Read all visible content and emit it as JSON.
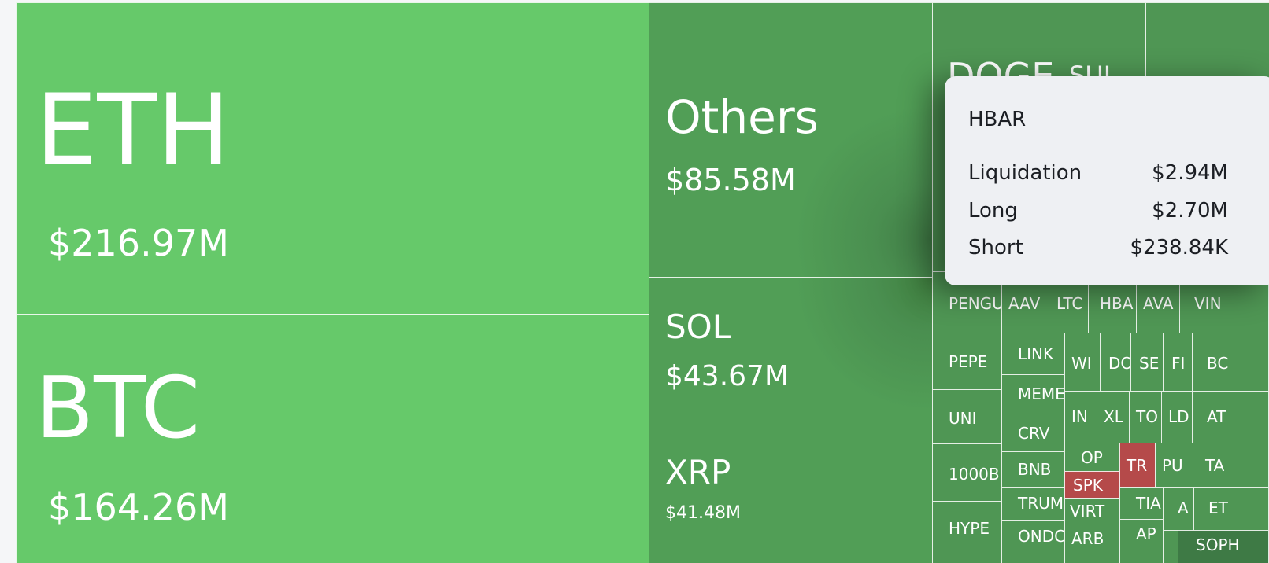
{
  "treemap": {
    "main_tiles": [
      {
        "symbol": "ETH",
        "value": "$216.97M"
      },
      {
        "symbol": "BTC",
        "value": "$164.26M"
      },
      {
        "symbol": "Others",
        "value": "$85.58M"
      },
      {
        "symbol": "SOL",
        "value": "$43.67M"
      },
      {
        "symbol": "XRP",
        "value": "$41.48M"
      }
    ],
    "small_tiles": [
      "DOGE",
      "SUI",
      "PENGU",
      "AAV",
      "LTC",
      "HBA",
      "AVA",
      "VIN",
      "PEPE",
      "LINK",
      "MEME",
      "CRV",
      "UNI",
      "1000B",
      "BNB",
      "TRUM",
      "HYPE",
      "ONDC",
      "WI",
      "DO",
      "SE",
      "FI",
      "BC",
      "IN",
      "XL",
      "TO",
      "LD",
      "AT",
      "OP",
      "TR",
      "PU",
      "TA",
      "SPK",
      "VIRT",
      "TIA",
      "A",
      "ET",
      "ARB",
      "AP",
      "SOPH"
    ]
  },
  "tooltip": {
    "title": "HBAR",
    "rows": [
      {
        "label": "Liquidation",
        "value": "$2.94M"
      },
      {
        "label": "Long",
        "value": "$2.70M"
      },
      {
        "label": "Short",
        "value": "$238.84K"
      }
    ]
  },
  "colors": {
    "positive_light": "#66c96a",
    "positive_dark": "#519e56",
    "negative": "#b54a4a",
    "tooltip_bg": "#eef0f3"
  }
}
